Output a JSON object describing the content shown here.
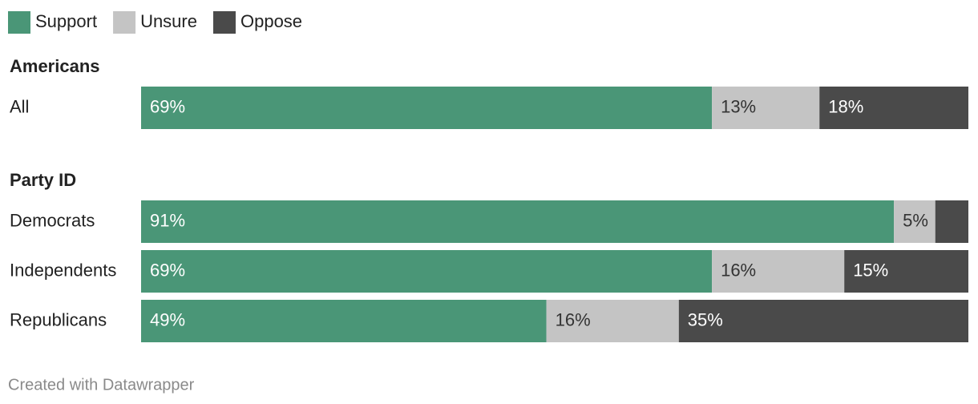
{
  "chart_data": {
    "type": "stacked-bar",
    "groups": [
      {
        "name": "Americans",
        "categories": [
          "All"
        ]
      },
      {
        "name": "Party ID",
        "categories": [
          "Democrats",
          "Independents",
          "Republicans"
        ]
      }
    ],
    "series": [
      {
        "name": "Support",
        "color": "#4a9677",
        "label_color": "#ffffff",
        "values": [
          69,
          91,
          69,
          49
        ],
        "value_labels": [
          "69%",
          "91%",
          "69%",
          "49%"
        ]
      },
      {
        "name": "Unsure",
        "color": "#c4c4c4",
        "label_color": "#333333",
        "values": [
          13,
          5,
          16,
          16
        ],
        "value_labels": [
          "13%",
          "5%",
          "16%",
          "16%"
        ]
      },
      {
        "name": "Oppose",
        "color": "#4a4a4a",
        "label_color": "#ffffff",
        "values": [
          18,
          4,
          15,
          35
        ],
        "value_labels": [
          "18%",
          null,
          "15%",
          "35%"
        ]
      }
    ],
    "xlim": [
      0,
      100
    ],
    "footer": "Created with Datawrapper"
  }
}
